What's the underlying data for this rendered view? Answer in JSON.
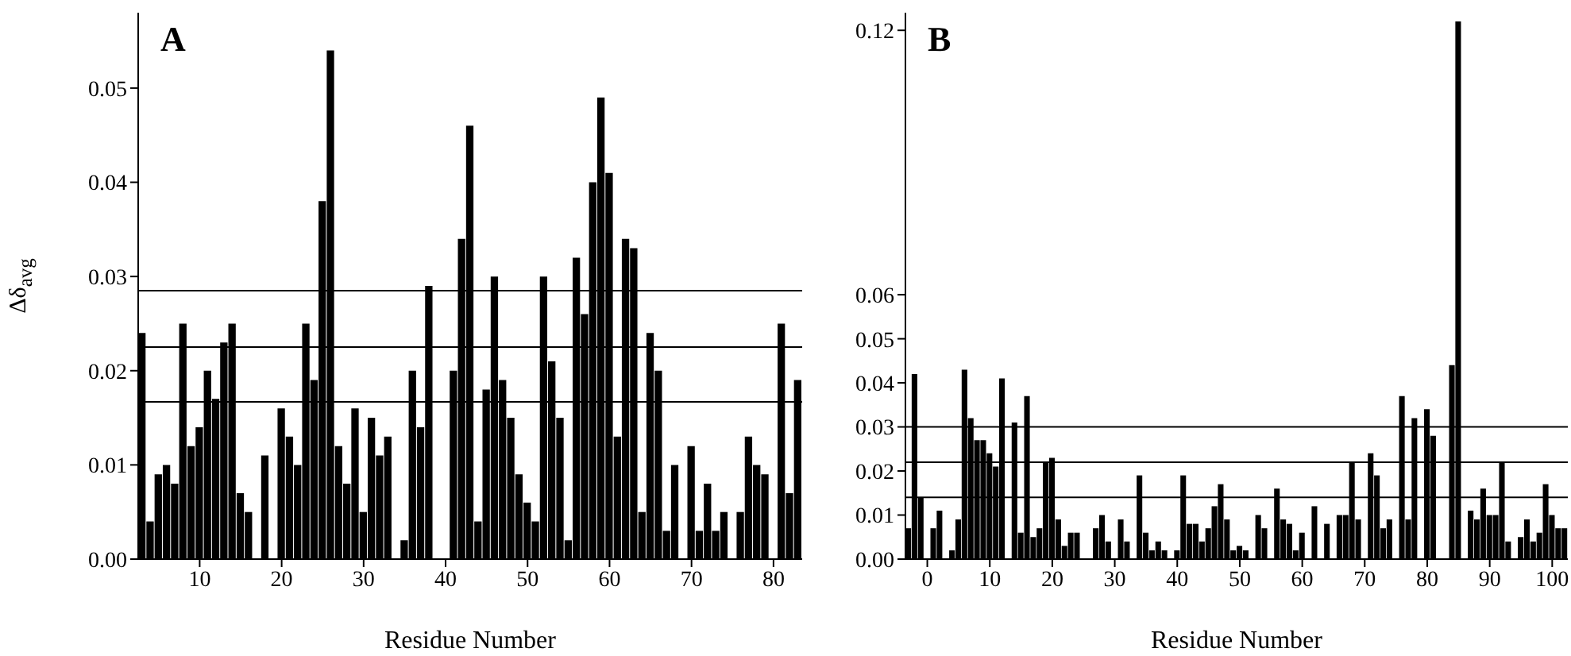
{
  "chart_data": [
    {
      "type": "bar",
      "title": "A",
      "xlabel": "Residue Number",
      "ylabel": "Δδ$_{avg}$",
      "color": "#000000",
      "x": [
        3,
        4,
        5,
        6,
        7,
        8,
        9,
        10,
        11,
        12,
        13,
        14,
        15,
        16,
        17,
        18,
        19,
        20,
        21,
        22,
        23,
        24,
        25,
        26,
        27,
        28,
        29,
        30,
        31,
        32,
        33,
        34,
        35,
        36,
        37,
        38,
        39,
        40,
        41,
        42,
        43,
        44,
        45,
        46,
        47,
        48,
        49,
        50,
        51,
        52,
        53,
        54,
        55,
        56,
        57,
        58,
        59,
        60,
        61,
        62,
        63,
        64,
        65,
        66,
        67,
        68,
        69,
        70,
        71,
        72,
        73,
        74,
        75,
        76,
        77,
        78,
        79,
        80,
        81,
        82,
        83
      ],
      "values": [
        0.024,
        0.004,
        0.009,
        0.01,
        0.008,
        0.025,
        0.012,
        0.014,
        0.02,
        0.017,
        0.023,
        0.025,
        0.007,
        0.005,
        null,
        0.011,
        null,
        0.016,
        0.013,
        0.01,
        0.025,
        0.019,
        0.038,
        0.054,
        0.012,
        0.008,
        0.016,
        0.005,
        0.015,
        0.011,
        0.013,
        null,
        0.002,
        0.02,
        0.014,
        0.029,
        null,
        null,
        0.02,
        0.034,
        0.046,
        0.004,
        0.018,
        0.03,
        0.019,
        0.015,
        0.009,
        0.006,
        0.004,
        0.03,
        0.021,
        0.015,
        0.002,
        0.032,
        0.026,
        0.04,
        0.049,
        0.041,
        0.013,
        0.034,
        0.033,
        0.005,
        0.024,
        0.02,
        0.003,
        0.01,
        null,
        0.012,
        0.003,
        0.008,
        0.003,
        0.005,
        null,
        0.005,
        0.013,
        0.01,
        0.009,
        null,
        0.025,
        0.007,
        0.019
      ],
      "xlim": [
        2.5,
        83.5
      ],
      "xticks": [
        10,
        20,
        30,
        40,
        50,
        60,
        70,
        80
      ],
      "ylim": [
        0,
        0.058
      ],
      "yticks": [
        {
          "value": 0,
          "label": "0.00"
        },
        {
          "value": 0.01,
          "label": "0.01"
        },
        {
          "value": 0.02,
          "label": "0.02"
        },
        {
          "value": 0.03,
          "label": "0.03"
        },
        {
          "value": 0.04,
          "label": "0.04"
        },
        {
          "value": 0.05,
          "label": "0.05"
        }
      ],
      "ref_lines": [
        {
          "axis": "y",
          "value": 0.0285,
          "color": "#000000"
        },
        {
          "axis": "y",
          "value": 0.0225,
          "color": "#000000"
        },
        {
          "axis": "y",
          "value": 0.0167,
          "color": "#000000"
        }
      ],
      "grid": false,
      "legend": false
    },
    {
      "type": "bar",
      "title": "B",
      "xlabel": "Residue Number",
      "color": "#000000",
      "x": [
        -3,
        -2,
        -1,
        0,
        1,
        2,
        3,
        4,
        5,
        6,
        7,
        8,
        9,
        10,
        11,
        12,
        13,
        14,
        15,
        16,
        17,
        18,
        19,
        20,
        21,
        22,
        23,
        24,
        25,
        26,
        27,
        28,
        29,
        30,
        31,
        32,
        33,
        34,
        35,
        36,
        37,
        38,
        39,
        40,
        41,
        42,
        43,
        44,
        45,
        46,
        47,
        48,
        49,
        50,
        51,
        52,
        53,
        54,
        55,
        56,
        57,
        58,
        59,
        60,
        61,
        62,
        63,
        64,
        65,
        66,
        67,
        68,
        69,
        70,
        71,
        72,
        73,
        74,
        75,
        76,
        77,
        78,
        79,
        80,
        81,
        82,
        83,
        84,
        85,
        86,
        87,
        88,
        89,
        90,
        91,
        92,
        93,
        94,
        95,
        96,
        97,
        98,
        99,
        100,
        101,
        102
      ],
      "values": [
        0.007,
        0.042,
        0.014,
        null,
        0.007,
        0.011,
        null,
        0.002,
        0.009,
        0.043,
        0.032,
        0.027,
        0.027,
        0.024,
        0.021,
        0.041,
        null,
        0.031,
        0.006,
        0.037,
        0.005,
        0.007,
        0.022,
        0.023,
        0.009,
        0.003,
        0.006,
        0.006,
        null,
        null,
        0.007,
        0.01,
        0.004,
        null,
        0.009,
        0.004,
        null,
        0.019,
        0.006,
        0.002,
        0.004,
        0.002,
        null,
        0.002,
        0.019,
        0.008,
        0.008,
        0.004,
        0.007,
        0.012,
        0.017,
        0.009,
        0.002,
        0.003,
        0.002,
        null,
        0.01,
        0.007,
        null,
        0.016,
        0.009,
        0.008,
        0.002,
        0.006,
        null,
        0.012,
        null,
        0.008,
        null,
        0.01,
        0.01,
        0.022,
        0.009,
        null,
        0.024,
        0.019,
        0.007,
        0.009,
        null,
        0.037,
        0.009,
        0.032,
        null,
        0.034,
        0.028,
        null,
        null,
        0.044,
        0.122,
        null,
        0.011,
        0.009,
        0.016,
        0.01,
        0.01,
        0.022,
        0.004,
        null,
        0.005,
        0.009,
        0.004,
        0.006,
        0.017,
        0.01,
        0.007,
        0.007
      ],
      "xlim": [
        -3.5,
        102.5
      ],
      "xticks": [
        0,
        10,
        20,
        30,
        40,
        50,
        60,
        70,
        80,
        90,
        100
      ],
      "ylim": [
        0,
        0.124
      ],
      "yticks": [
        {
          "value": 0,
          "label": "0.00"
        },
        {
          "value": 0.01,
          "label": "0.01"
        },
        {
          "value": 0.02,
          "label": "0.02"
        },
        {
          "value": 0.03,
          "label": "0.03"
        },
        {
          "value": 0.04,
          "label": "0.04"
        },
        {
          "value": 0.05,
          "label": "0.05"
        },
        {
          "value": 0.06,
          "label": "0.06"
        },
        {
          "value": 0.12,
          "label": "0.12"
        }
      ],
      "ref_lines": [
        {
          "axis": "y",
          "value": 0.03,
          "color": "#000000"
        },
        {
          "axis": "y",
          "value": 0.022,
          "color": "#000000"
        },
        {
          "axis": "y",
          "value": 0.014,
          "color": "#000000"
        }
      ],
      "grid": false,
      "legend": false
    }
  ]
}
